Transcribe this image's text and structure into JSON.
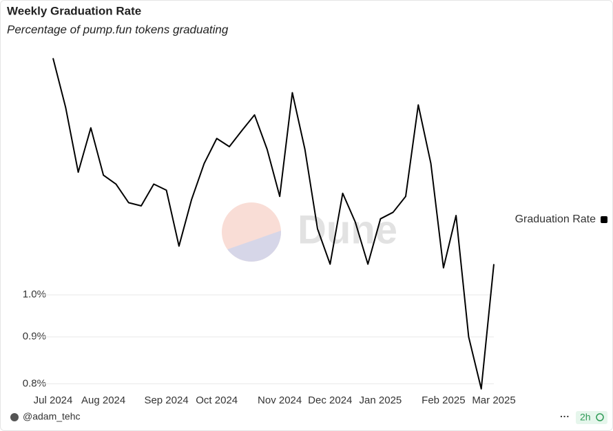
{
  "chart_data": {
    "type": "line",
    "title": "Weekly Graduation Rate",
    "subtitle": "Percentage of pump.fun tokens graduating",
    "categories": [
      "Jul 2024",
      null,
      null,
      null,
      "Aug 2024",
      null,
      null,
      null,
      null,
      "Sep 2024",
      null,
      null,
      null,
      "Oct 2024",
      null,
      null,
      null,
      null,
      "Nov 2024",
      null,
      null,
      null,
      "Dec 2024",
      null,
      null,
      null,
      "Jan 2025",
      null,
      null,
      null,
      null,
      "Feb 2025",
      null,
      null,
      null,
      "Mar 2025"
    ],
    "series": [
      {
        "name": "Graduation Rate",
        "color": "#000000",
        "values": [
          1.81,
          1.6,
          1.36,
          1.52,
          1.35,
          1.32,
          1.26,
          1.25,
          1.32,
          1.3,
          1.13,
          1.27,
          1.39,
          1.48,
          1.45,
          1.51,
          1.57,
          1.44,
          1.28,
          1.66,
          1.44,
          1.18,
          1.08,
          1.29,
          1.2,
          1.08,
          1.21,
          1.23,
          1.28,
          1.61,
          1.39,
          1.07,
          1.22,
          0.9,
          0.79,
          1.08
        ]
      }
    ],
    "ylim": [
      0.787,
      1.84
    ],
    "log_y": true,
    "yticks": [
      {
        "value": 0.8,
        "label": "0.8%"
      },
      {
        "value": 0.9,
        "label": "0.9%"
      },
      {
        "value": 1.0,
        "label": "1.0%"
      }
    ],
    "grid": true,
    "legend": "right"
  },
  "watermark": "Dune",
  "footer": {
    "author": "@adam_tehc",
    "menu": "···",
    "age": "2h"
  }
}
